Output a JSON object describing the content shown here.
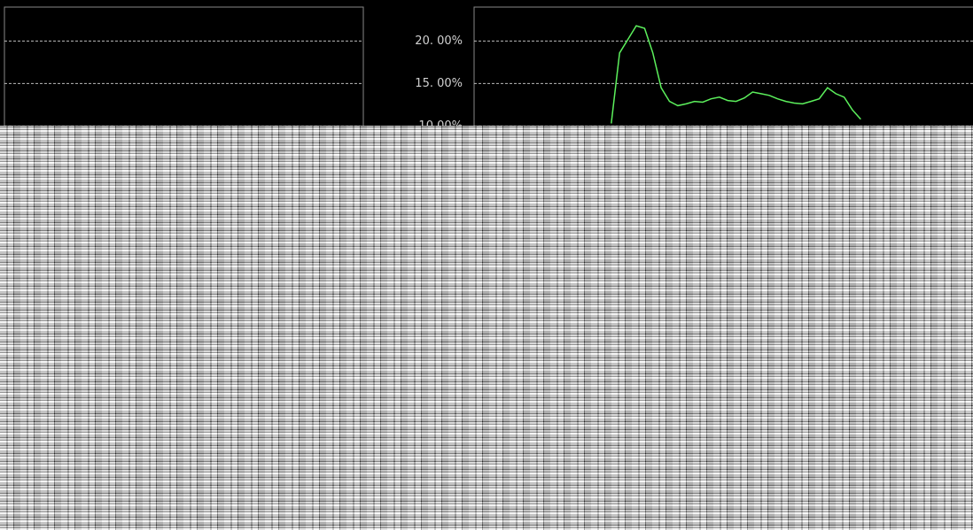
{
  "chart_data": {
    "type": "line",
    "categories": [
      null,
      null,
      null,
      null,
      null,
      null,
      null,
      null,
      null,
      null,
      null,
      null,
      null,
      null,
      null,
      null,
      null,
      null,
      null,
      null,
      null,
      null,
      null,
      null,
      null,
      null,
      null,
      null,
      null,
      null,
      null,
      null,
      null,
      null,
      null,
      null,
      null,
      null,
      null,
      null,
      null,
      null,
      null,
      null,
      null,
      null,
      null,
      null,
      null,
      null,
      null,
      null,
      null,
      null,
      null,
      null,
      null,
      null,
      null,
      null
    ],
    "series": [
      {
        "color": "#5cf05c",
        "values": [
          null,
          null,
          null,
          null,
          null,
          null,
          null,
          null,
          null,
          null,
          null,
          null,
          null,
          null,
          null,
          null,
          10.3,
          18.6,
          20.2,
          21.8,
          21.5,
          18.6,
          14.5,
          12.9,
          12.4,
          12.6,
          12.9,
          12.8,
          13.2,
          13.4,
          13.0,
          12.9,
          13.3,
          14.0,
          13.8,
          13.6,
          13.2,
          12.9,
          12.7,
          12.6,
          12.9,
          13.2,
          14.5,
          13.8,
          13.4,
          11.9,
          10.8,
          null,
          null,
          null,
          null,
          null,
          null,
          null,
          null,
          null,
          null,
          null,
          null,
          null
        ]
      }
    ],
    "ylim": [
      10,
      24
    ],
    "yticks": [
      {
        "value": 10,
        "label": "10.00%"
      },
      {
        "value": 15,
        "label": "15. 00%"
      },
      {
        "value": 20,
        "label": "20. 00%"
      }
    ],
    "grid": true
  }
}
